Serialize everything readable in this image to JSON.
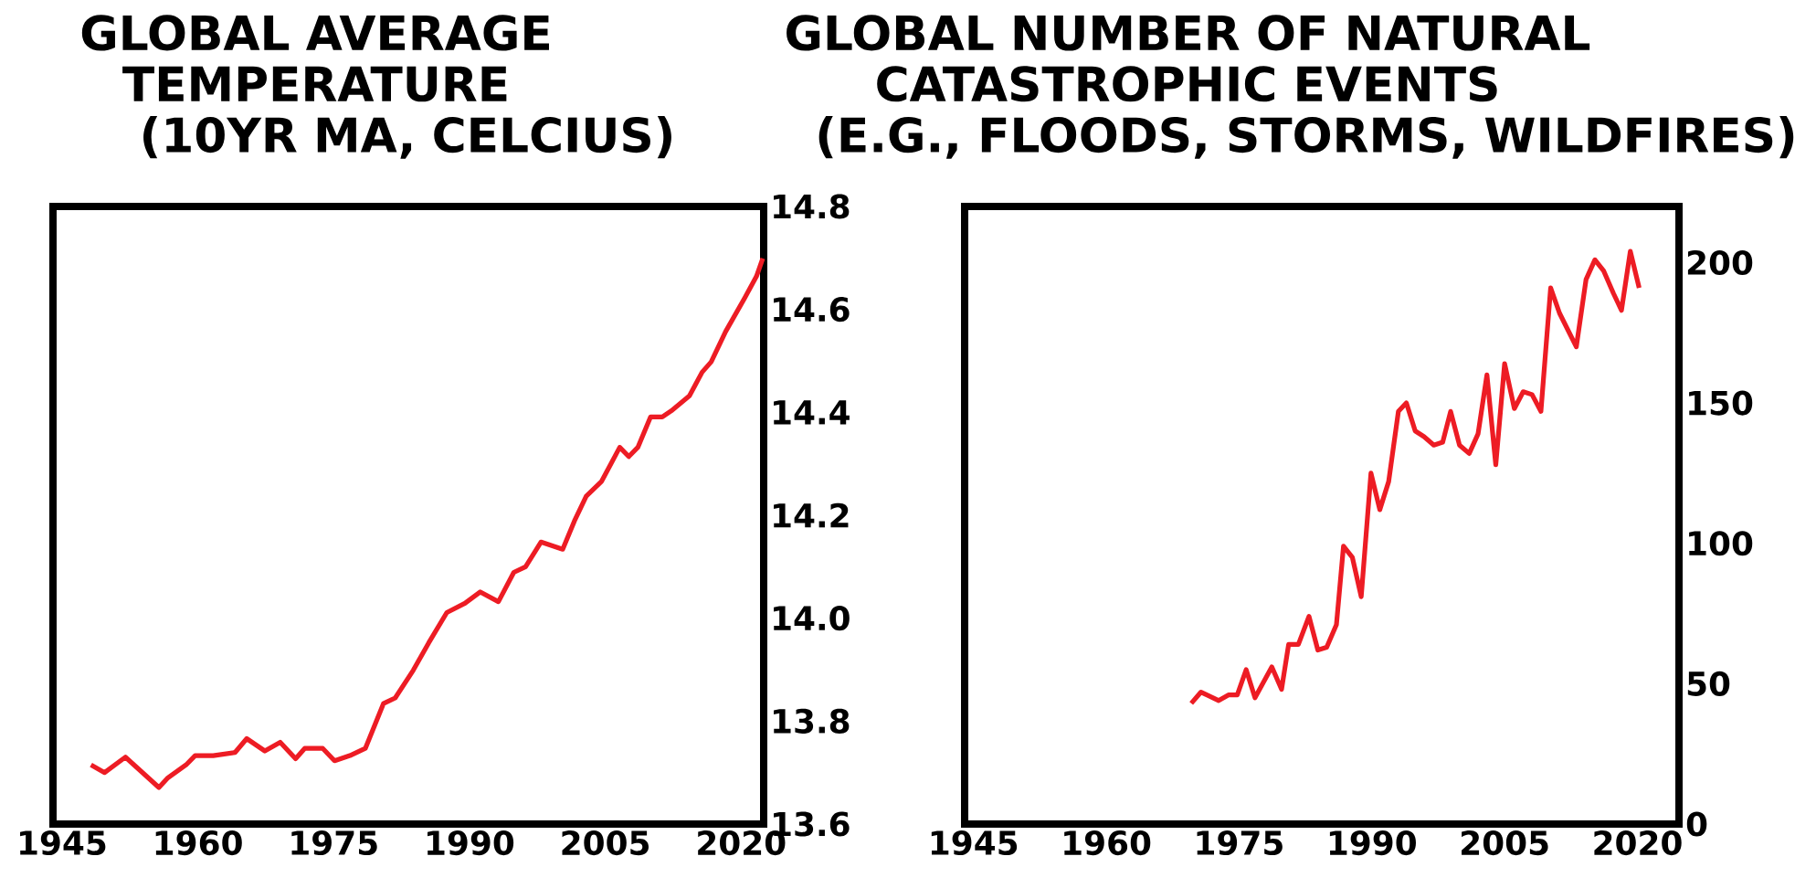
{
  "chart_data": [
    {
      "type": "line",
      "title": "GLOBAL AVERAGE TEMPERATURE (10YR MA, CELCIUS)",
      "xlim": [
        1944,
        2022.5
      ],
      "xticks": [
        1945,
        1960,
        1975,
        1990,
        2005,
        2020
      ],
      "ylim": [
        13.6,
        14.8
      ],
      "yticks": [
        13.6,
        13.8,
        {
          "value": 14,
          "label": "14.0"
        },
        14.2,
        14.4,
        14.6,
        14.8
      ],
      "series": [
        {
          "color": "#ed1c24",
          "x": [
            1948.2,
            1949.7,
            1952.0,
            1953.7,
            1955.7,
            1956.7,
            1958.7,
            1959.7,
            1961.7,
            1964.1,
            1965.4,
            1967.4,
            1969.1,
            1970.8,
            1971.8,
            1973.8,
            1975.1,
            1976.8,
            1978.5,
            1980.5,
            1981.8,
            1983.8,
            1985.5,
            1987.5,
            1989.5,
            1991.2,
            1993.2,
            1994.9,
            1996.2,
            1997.9,
            2000.3,
            2001.6,
            2002.9,
            2004.6,
            2006.6,
            2007.6,
            2008.6,
            2010.0,
            2011.3,
            2012.3,
            2014.3,
            2015.7,
            2016.7,
            2018.3,
            2020.4,
            2021.7,
            2022.4
          ],
          "values": [
            13.715,
            13.7,
            13.73,
            13.703,
            13.671,
            13.69,
            13.715,
            13.733,
            13.733,
            13.739,
            13.766,
            13.742,
            13.759,
            13.727,
            13.747,
            13.747,
            13.723,
            13.733,
            13.747,
            13.834,
            13.845,
            13.899,
            13.952,
            14.011,
            14.029,
            14.051,
            14.032,
            14.089,
            14.1,
            14.148,
            14.134,
            14.189,
            14.237,
            14.266,
            14.332,
            14.314,
            14.332,
            14.391,
            14.391,
            14.403,
            14.432,
            14.478,
            14.498,
            14.557,
            14.622,
            14.664,
            14.699
          ]
        }
      ]
    },
    {
      "type": "line",
      "title": "GLOBAL NUMBER OF NATURAL CATASTROPHIC EVENTS (E.G., FLOODS, STORMS, WILDFIRES)",
      "xlim": [
        1944,
        2024.7
      ],
      "xticks": [
        1945,
        1960,
        1975,
        1990,
        2005,
        2020
      ],
      "ylim": [
        0,
        220
      ],
      "yticks": [
        0,
        50,
        100,
        150,
        200
      ],
      "series": [
        {
          "color": "#ed1c24",
          "x": [
            1969.6,
            1970.7,
            1972.7,
            1973.8,
            1974.8,
            1975.8,
            1976.8,
            1978.7,
            1979.8,
            1980.6,
            1981.7,
            1982.9,
            1983.9,
            1984.9,
            1986.0,
            1986.8,
            1987.8,
            1988.8,
            1989.9,
            1990.9,
            1991.9,
            1993.0,
            1993.9,
            1994.9,
            1995.9,
            1997.0,
            1998.0,
            1998.9,
            1999.9,
            2001.0,
            2002.0,
            2003.0,
            2004.0,
            2005.0,
            2006.1,
            2007.1,
            2008.1,
            2009.1,
            2010.2,
            2011.2,
            2013.1,
            2014.2,
            2015.2,
            2016.2,
            2017.3,
            2018.2,
            2019.2,
            2020.2
          ],
          "values": [
            43,
            47,
            44,
            46,
            46,
            55,
            45,
            56,
            48,
            64,
            64,
            74,
            62,
            63,
            71,
            99,
            95,
            81,
            125,
            112,
            122,
            147,
            150,
            140,
            138,
            135,
            136,
            147,
            135,
            132,
            139,
            160,
            128,
            164,
            148,
            154,
            153,
            147,
            191,
            182,
            170,
            194,
            201,
            197,
            189,
            183,
            204,
            191
          ]
        }
      ]
    }
  ]
}
